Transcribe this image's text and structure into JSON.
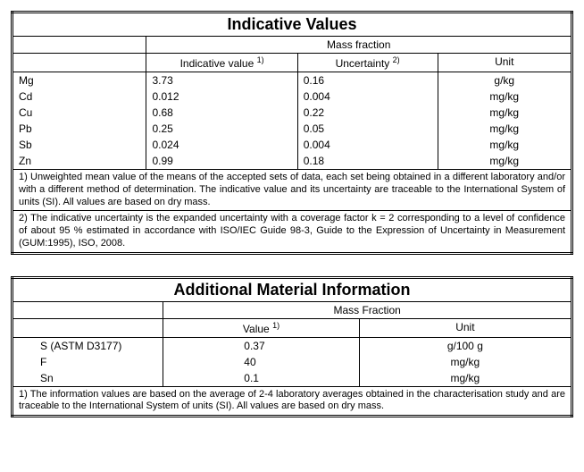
{
  "table1": {
    "title": "Indicative Values",
    "span_header": "Mass fraction",
    "col_headers": {
      "indicative": "Indicative value",
      "indicative_sup": "1)",
      "uncertainty": "Uncertainty",
      "uncertainty_sup": "2)",
      "unit": "Unit"
    },
    "rows": [
      {
        "elem": "Mg",
        "val": "3.73",
        "unc": "0.16",
        "unit": "g/kg"
      },
      {
        "elem": "Cd",
        "val": "0.012",
        "unc": "0.004",
        "unit": "mg/kg"
      },
      {
        "elem": "Cu",
        "val": "0.68",
        "unc": "0.22",
        "unit": "mg/kg"
      },
      {
        "elem": "Pb",
        "val": "0.25",
        "unc": "0.05",
        "unit": "mg/kg"
      },
      {
        "elem": "Sb",
        "val": "0.024",
        "unc": "0.004",
        "unit": "mg/kg"
      },
      {
        "elem": "Zn",
        "val": "0.99",
        "unc": "0.18",
        "unit": "mg/kg"
      }
    ],
    "notes": [
      "1) Unweighted mean value of the means of the accepted sets of data, each set being obtained in a different laboratory and/or with a different method of determination. The indicative value and its uncertainty are traceable to the International System of units (SI). All values are based on dry mass.",
      "2) The indicative uncertainty is the expanded uncertainty with a coverage factor k = 2 corresponding to a level of confidence of about 95 % estimated in accordance with ISO/IEC Guide 98-3, Guide to the Expression of Uncertainty in Measurement (GUM:1995), ISO, 2008."
    ]
  },
  "table2": {
    "title": "Additional Material Information",
    "span_header": "Mass Fraction",
    "col_headers": {
      "value": "Value",
      "value_sup": "1)",
      "unit": "Unit"
    },
    "rows": [
      {
        "elem": "S (ASTM D3177)",
        "val": "0.37",
        "unit": "g/100 g"
      },
      {
        "elem": "F",
        "val": "40",
        "unit": "mg/kg"
      },
      {
        "elem": "Sn",
        "val": "0.1",
        "unit": "mg/kg"
      }
    ],
    "notes": [
      "1) The information values are based on the average of 2-4 laboratory averages obtained in the characterisation study and are traceable to the International System of units (SI). All values are based on dry mass."
    ]
  }
}
